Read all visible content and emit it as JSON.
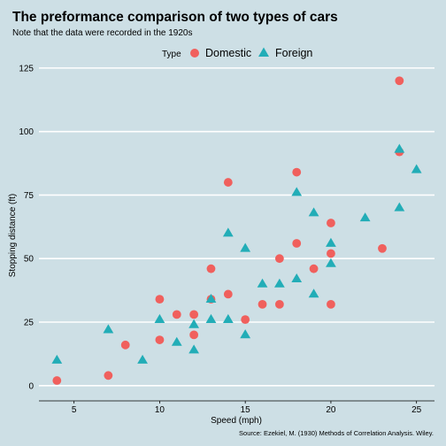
{
  "chart_data": {
    "type": "scatter",
    "title": "The preformance comparison of two types of cars",
    "subtitle": "Note that the data were recorded in the 1920s",
    "caption": "Source: Ezekiel, M. (1930) Methods of Correlation Analysis. Wiley.",
    "xlabel": "Speed (mph)",
    "ylabel": "Stopping distance (ft)",
    "xlim": [
      2.95,
      26.05
    ],
    "ylim": [
      -6,
      126
    ],
    "x_ticks": [
      "5",
      "10",
      "15",
      "20",
      "25"
    ],
    "y_ticks": [
      "0",
      "25",
      "50",
      "75",
      "100",
      "125"
    ],
    "grid": "horizontal",
    "legend": {
      "title": "Type",
      "position": "top",
      "entries": [
        {
          "label": "Domestic",
          "shape": "circle",
          "color": "#f0605d"
        },
        {
          "label": "Foreign",
          "shape": "triangle",
          "color": "#22adb7"
        }
      ]
    },
    "series": [
      {
        "name": "Domestic",
        "color": "#f0605d",
        "shape": "circle",
        "points": [
          [
            4,
            2
          ],
          [
            7,
            4
          ],
          [
            8,
            16
          ],
          [
            10,
            18
          ],
          [
            10,
            34
          ],
          [
            11,
            28
          ],
          [
            12,
            20
          ],
          [
            12,
            28
          ],
          [
            13,
            34
          ],
          [
            13,
            46
          ],
          [
            14,
            36
          ],
          [
            14,
            80
          ],
          [
            15,
            26
          ],
          [
            16,
            32
          ],
          [
            17,
            32
          ],
          [
            17,
            50
          ],
          [
            18,
            56
          ],
          [
            18,
            84
          ],
          [
            19,
            46
          ],
          [
            20,
            32
          ],
          [
            20,
            52
          ],
          [
            20,
            64
          ],
          [
            23,
            54
          ],
          [
            24,
            92
          ],
          [
            24,
            120
          ]
        ]
      },
      {
        "name": "Foreign",
        "color": "#22adb7",
        "shape": "triangle",
        "points": [
          [
            4,
            10
          ],
          [
            7,
            22
          ],
          [
            9,
            10
          ],
          [
            10,
            26
          ],
          [
            11,
            17
          ],
          [
            12,
            14
          ],
          [
            12,
            24
          ],
          [
            13,
            26
          ],
          [
            13,
            34
          ],
          [
            14,
            26
          ],
          [
            14,
            60
          ],
          [
            15,
            20
          ],
          [
            15,
            54
          ],
          [
            16,
            40
          ],
          [
            17,
            40
          ],
          [
            18,
            42
          ],
          [
            18,
            76
          ],
          [
            19,
            36
          ],
          [
            19,
            68
          ],
          [
            20,
            48
          ],
          [
            20,
            56
          ],
          [
            22,
            66
          ],
          [
            24,
            70
          ],
          [
            24,
            93
          ],
          [
            25,
            85
          ]
        ]
      }
    ]
  }
}
